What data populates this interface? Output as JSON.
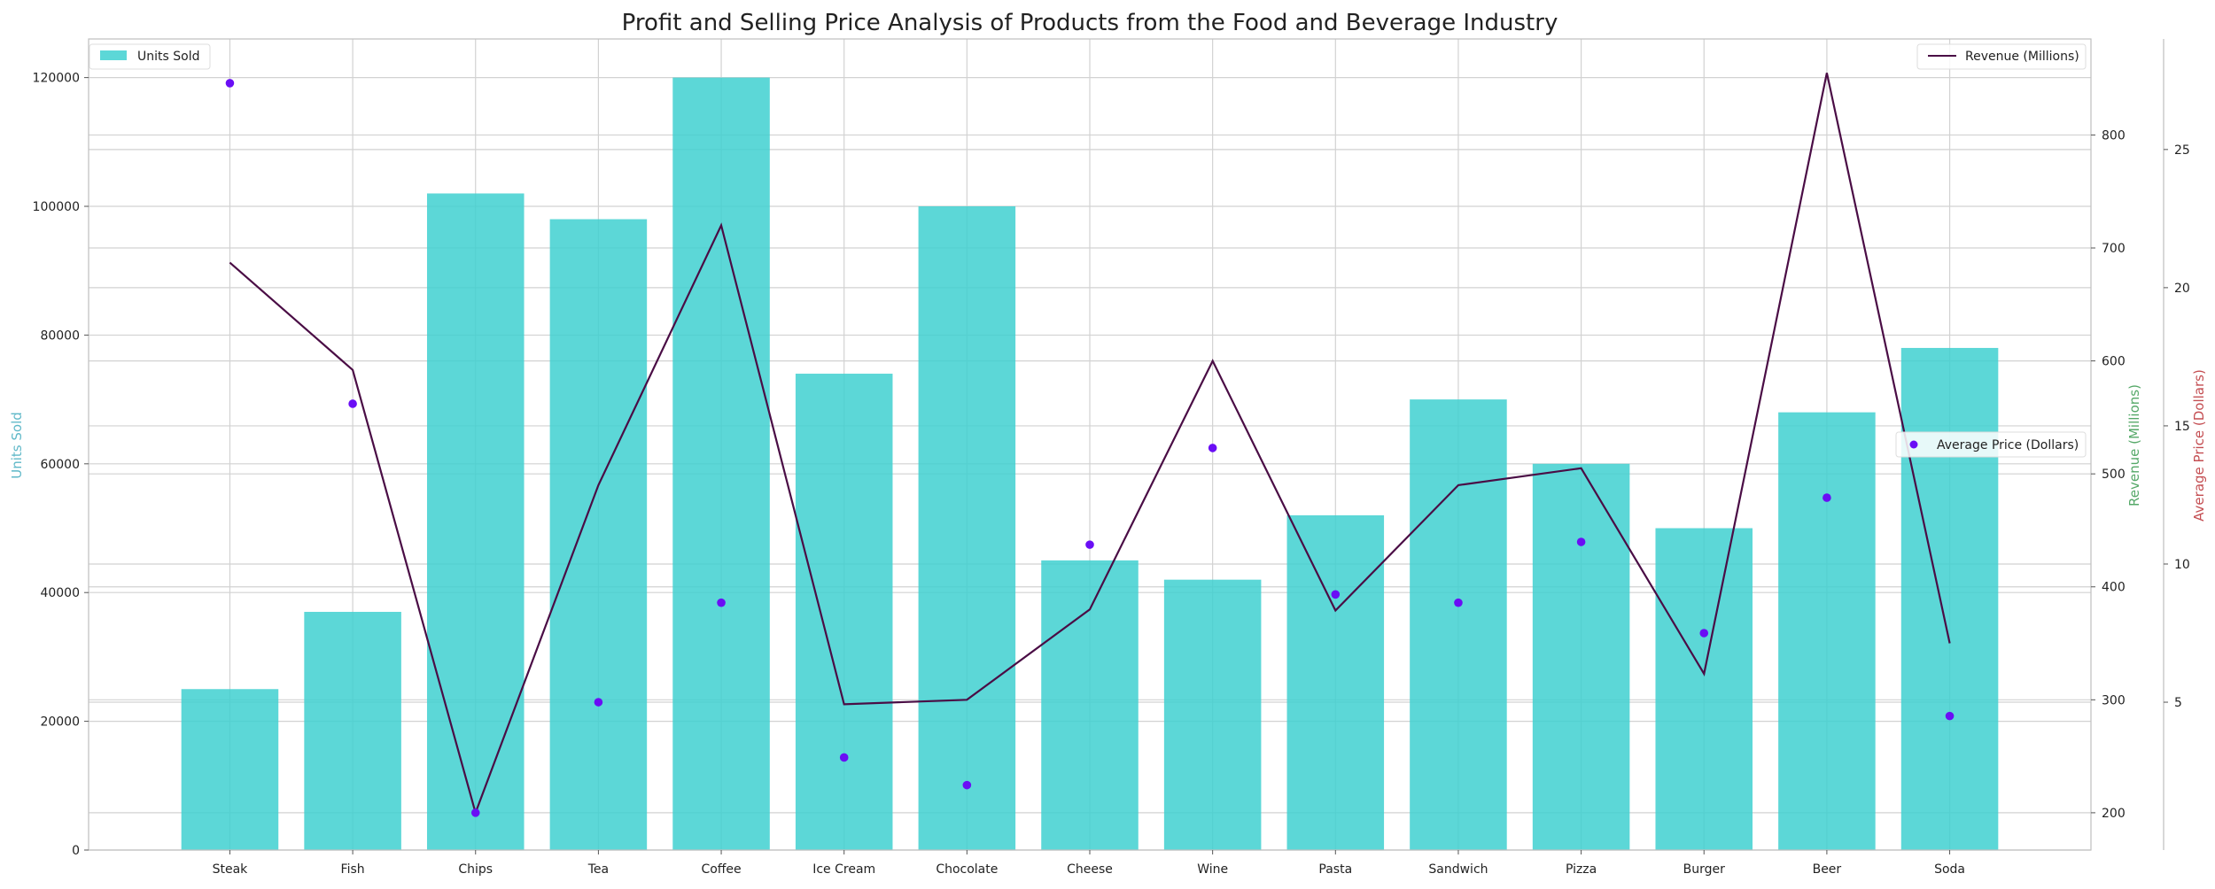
{
  "chart_data": {
    "type": "bar",
    "title": "Profit and Selling Price Analysis of Products from the Food and Beverage Industry",
    "categories": [
      "Steak",
      "Fish",
      "Chips",
      "Tea",
      "Coffee",
      "Ice Cream",
      "Chocolate",
      "Cheese",
      "Wine",
      "Pasta",
      "Sandwich",
      "Pizza",
      "Burger",
      "Beer",
      "Soda"
    ],
    "series": [
      {
        "name": "Units Sold",
        "kind": "bar",
        "axis": "left",
        "color": "#40d0d0",
        "values": [
          25000,
          37000,
          102000,
          98000,
          120000,
          74000,
          100000,
          45000,
          42000,
          52000,
          70000,
          60000,
          50000,
          68000,
          78000
        ]
      },
      {
        "name": "Revenue (Millions)",
        "kind": "line",
        "axis": "right",
        "color": "#4a0d45",
        "values": [
          687,
          592,
          200,
          490,
          720,
          296,
          300,
          380,
          600,
          379,
          490,
          505,
          323,
          855,
          350
        ]
      },
      {
        "name": "Average Price (Dollars)",
        "kind": "scatter",
        "axis": "right2",
        "color": "#6a0ef5",
        "values": [
          27.4,
          15.8,
          1.0,
          5.0,
          8.6,
          3.0,
          2.0,
          10.7,
          14.2,
          8.9,
          8.6,
          10.8,
          7.5,
          12.4,
          4.5
        ]
      }
    ],
    "axes": {
      "left": {
        "label": "Units Sold",
        "range": [
          0,
          126000
        ],
        "ticks": [
          0,
          20000,
          40000,
          60000,
          80000,
          100000,
          120000
        ],
        "label_color": "#5fb8c8"
      },
      "right": {
        "label": "Revenue (Millions)",
        "range": [
          167,
          885
        ],
        "ticks": [
          200,
          300,
          400,
          500,
          600,
          700,
          800
        ],
        "label_color": "#55a868"
      },
      "right2": {
        "label": "Average Price (Dollars)",
        "range": [
          -0.35,
          29.0
        ],
        "ticks": [
          5,
          10,
          15,
          20,
          25
        ],
        "label_color": "#c44e52"
      }
    },
    "grid": true,
    "legends": {
      "units": "top-left",
      "revenue": "top-right",
      "price": "center-right"
    }
  }
}
